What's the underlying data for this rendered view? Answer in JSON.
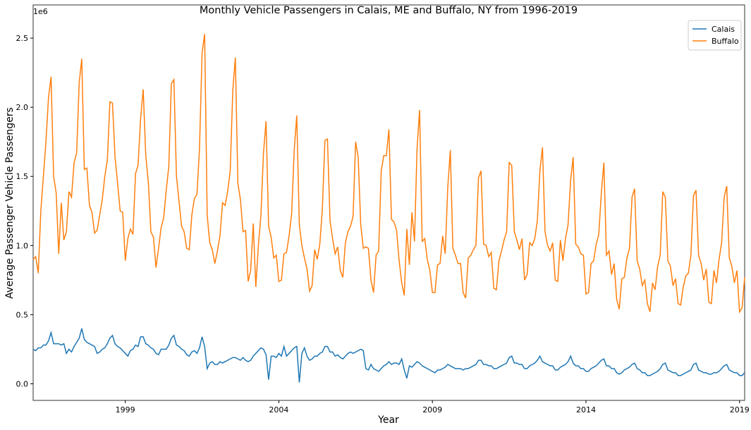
{
  "chart_data": {
    "type": "line",
    "title": "Monthly Vehicle Passengers in Calais, ME and Buffalo, NY from 1996-2019",
    "x_label": "Year",
    "y_label": "Average Passenger Vehicle Passengers",
    "y_offset_label": "1e6",
    "legend": "upper right",
    "grid": false,
    "xlim": [
      "1996-01",
      "2019-03"
    ],
    "xticks": [
      {
        "value": "1999-01",
        "label": "1999"
      },
      {
        "value": "2004-01",
        "label": "2004"
      },
      {
        "value": "2009-01",
        "label": "2009"
      },
      {
        "value": "2014-01",
        "label": "2014"
      },
      {
        "value": "2019-01",
        "label": "2019"
      }
    ],
    "ylim": [
      -0.12,
      2.74
    ],
    "yticks": [
      {
        "value": 0,
        "label": "0.0"
      },
      0.5,
      {
        "value": 1,
        "label": "1.0"
      },
      1.5,
      {
        "value": 2,
        "label": "2.0"
      },
      2.5
    ],
    "x": [
      "1996-01",
      "1996-02",
      "1996-03",
      "1996-04",
      "1996-05",
      "1996-06",
      "1996-07",
      "1996-08",
      "1996-09",
      "1996-10",
      "1996-11",
      "1996-12",
      "1997-01",
      "1997-02",
      "1997-03",
      "1997-04",
      "1997-05",
      "1997-06",
      "1997-07",
      "1997-08",
      "1997-09",
      "1997-10",
      "1997-11",
      "1997-12",
      "1998-01",
      "1998-02",
      "1998-03",
      "1998-04",
      "1998-05",
      "1998-06",
      "1998-07",
      "1998-08",
      "1998-09",
      "1998-10",
      "1998-11",
      "1998-12",
      "1999-01",
      "1999-02",
      "1999-03",
      "1999-04",
      "1999-05",
      "1999-06",
      "1999-07",
      "1999-08",
      "1999-09",
      "1999-10",
      "1999-11",
      "1999-12",
      "2000-01",
      "2000-02",
      "2000-03",
      "2000-04",
      "2000-05",
      "2000-06",
      "2000-07",
      "2000-08",
      "2000-09",
      "2000-10",
      "2000-11",
      "2000-12",
      "2001-01",
      "2001-02",
      "2001-03",
      "2001-04",
      "2001-05",
      "2001-06",
      "2001-07",
      "2001-08",
      "2001-09",
      "2001-10",
      "2001-11",
      "2001-12",
      "2002-01",
      "2002-02",
      "2002-03",
      "2002-04",
      "2002-05",
      "2002-06",
      "2002-07",
      "2002-08",
      "2002-09",
      "2002-10",
      "2002-11",
      "2002-12",
      "2003-01",
      "2003-02",
      "2003-03",
      "2003-04",
      "2003-05",
      "2003-06",
      "2003-07",
      "2003-08",
      "2003-09",
      "2003-10",
      "2003-11",
      "2003-12",
      "2004-01",
      "2004-02",
      "2004-03",
      "2004-04",
      "2004-05",
      "2004-06",
      "2004-07",
      "2004-08",
      "2004-09",
      "2004-10",
      "2004-11",
      "2004-12",
      "2005-01",
      "2005-02",
      "2005-03",
      "2005-04",
      "2005-05",
      "2005-06",
      "2005-07",
      "2005-08",
      "2005-09",
      "2005-10",
      "2005-11",
      "2005-12",
      "2006-01",
      "2006-02",
      "2006-03",
      "2006-04",
      "2006-05",
      "2006-06",
      "2006-07",
      "2006-08",
      "2006-09",
      "2006-10",
      "2006-11",
      "2006-12",
      "2007-01",
      "2007-02",
      "2007-03",
      "2007-04",
      "2007-05",
      "2007-06",
      "2007-07",
      "2007-08",
      "2007-09",
      "2007-10",
      "2007-11",
      "2007-12",
      "2008-01",
      "2008-02",
      "2008-03",
      "2008-04",
      "2008-05",
      "2008-06",
      "2008-07",
      "2008-08",
      "2008-09",
      "2008-10",
      "2008-11",
      "2008-12",
      "2009-01",
      "2009-02",
      "2009-03",
      "2009-04",
      "2009-05",
      "2009-06",
      "2009-07",
      "2009-08",
      "2009-09",
      "2009-10",
      "2009-11",
      "2009-12",
      "2010-01",
      "2010-02",
      "2010-03",
      "2010-04",
      "2010-05",
      "2010-06",
      "2010-07",
      "2010-08",
      "2010-09",
      "2010-10",
      "2010-11",
      "2010-12",
      "2011-01",
      "2011-02",
      "2011-03",
      "2011-04",
      "2011-05",
      "2011-06",
      "2011-07",
      "2011-08",
      "2011-09",
      "2011-10",
      "2011-11",
      "2011-12",
      "2012-01",
      "2012-02",
      "2012-03",
      "2012-04",
      "2012-05",
      "2012-06",
      "2012-07",
      "2012-08",
      "2012-09",
      "2012-10",
      "2012-11",
      "2012-12",
      "2013-01",
      "2013-02",
      "2013-03",
      "2013-04",
      "2013-05",
      "2013-06",
      "2013-07",
      "2013-08",
      "2013-09",
      "2013-10",
      "2013-11",
      "2013-12",
      "2014-01",
      "2014-02",
      "2014-03",
      "2014-04",
      "2014-05",
      "2014-06",
      "2014-07",
      "2014-08",
      "2014-09",
      "2014-10",
      "2014-11",
      "2014-12",
      "2015-01",
      "2015-02",
      "2015-03",
      "2015-04",
      "2015-05",
      "2015-06",
      "2015-07",
      "2015-08",
      "2015-09",
      "2015-10",
      "2015-11",
      "2015-12",
      "2016-01",
      "2016-02",
      "2016-03",
      "2016-04",
      "2016-05",
      "2016-06",
      "2016-07",
      "2016-08",
      "2016-09",
      "2016-10",
      "2016-11",
      "2016-12",
      "2017-01",
      "2017-02",
      "2017-03",
      "2017-04",
      "2017-05",
      "2017-06",
      "2017-07",
      "2017-08",
      "2017-09",
      "2017-10",
      "2017-11",
      "2017-12",
      "2018-01",
      "2018-02",
      "2018-03",
      "2018-04",
      "2018-05",
      "2018-06",
      "2018-07",
      "2018-08",
      "2018-09",
      "2018-10",
      "2018-11",
      "2018-12",
      "2019-01",
      "2019-02",
      "2019-03"
    ],
    "series": [
      {
        "name": "Calais",
        "color": "#1f77b4",
        "values": [
          0.25,
          0.24,
          0.26,
          0.26,
          0.28,
          0.28,
          0.31,
          0.37,
          0.29,
          0.29,
          0.29,
          0.28,
          0.29,
          0.22,
          0.25,
          0.23,
          0.27,
          0.3,
          0.33,
          0.4,
          0.32,
          0.3,
          0.29,
          0.28,
          0.27,
          0.22,
          0.23,
          0.25,
          0.26,
          0.29,
          0.33,
          0.35,
          0.29,
          0.27,
          0.26,
          0.24,
          0.22,
          0.2,
          0.24,
          0.25,
          0.28,
          0.27,
          0.34,
          0.34,
          0.29,
          0.28,
          0.26,
          0.25,
          0.22,
          0.21,
          0.25,
          0.25,
          0.25,
          0.28,
          0.33,
          0.35,
          0.28,
          0.27,
          0.25,
          0.24,
          0.21,
          0.2,
          0.23,
          0.24,
          0.22,
          0.26,
          0.34,
          0.27,
          0.11,
          0.15,
          0.16,
          0.14,
          0.14,
          0.16,
          0.15,
          0.16,
          0.17,
          0.18,
          0.19,
          0.19,
          0.18,
          0.17,
          0.19,
          0.17,
          0.16,
          0.17,
          0.2,
          0.22,
          0.24,
          0.26,
          0.25,
          0.21,
          0.03,
          0.2,
          0.2,
          0.19,
          0.22,
          0.2,
          0.27,
          0.2,
          0.22,
          0.24,
          0.26,
          0.27,
          0.01,
          0.22,
          0.26,
          0.2,
          0.17,
          0.18,
          0.2,
          0.2,
          0.22,
          0.23,
          0.27,
          0.27,
          0.23,
          0.23,
          0.2,
          0.21,
          0.19,
          0.18,
          0.2,
          0.22,
          0.23,
          0.22,
          0.23,
          0.24,
          0.25,
          0.24,
          0.11,
          0.1,
          0.14,
          0.11,
          0.1,
          0.09,
          0.11,
          0.13,
          0.14,
          0.16,
          0.14,
          0.15,
          0.15,
          0.14,
          0.18,
          0.1,
          0.04,
          0.13,
          0.12,
          0.14,
          0.16,
          0.15,
          0.13,
          0.12,
          0.11,
          0.1,
          0.09,
          0.08,
          0.1,
          0.1,
          0.11,
          0.12,
          0.14,
          0.13,
          0.12,
          0.11,
          0.11,
          0.11,
          0.1,
          0.11,
          0.11,
          0.12,
          0.13,
          0.14,
          0.17,
          0.17,
          0.14,
          0.14,
          0.13,
          0.13,
          0.11,
          0.11,
          0.12,
          0.13,
          0.14,
          0.15,
          0.19,
          0.2,
          0.15,
          0.15,
          0.14,
          0.14,
          0.11,
          0.11,
          0.13,
          0.14,
          0.15,
          0.17,
          0.2,
          0.16,
          0.15,
          0.14,
          0.13,
          0.13,
          0.1,
          0.1,
          0.12,
          0.13,
          0.14,
          0.16,
          0.2,
          0.15,
          0.13,
          0.13,
          0.11,
          0.11,
          0.09,
          0.09,
          0.11,
          0.12,
          0.13,
          0.15,
          0.17,
          0.18,
          0.13,
          0.13,
          0.11,
          0.11,
          0.08,
          0.07,
          0.08,
          0.1,
          0.11,
          0.12,
          0.14,
          0.15,
          0.11,
          0.1,
          0.08,
          0.08,
          0.06,
          0.06,
          0.07,
          0.08,
          0.09,
          0.11,
          0.14,
          0.15,
          0.1,
          0.09,
          0.08,
          0.08,
          0.06,
          0.06,
          0.07,
          0.08,
          0.09,
          0.1,
          0.14,
          0.15,
          0.1,
          0.09,
          0.08,
          0.08,
          0.07,
          0.07,
          0.08,
          0.08,
          0.09,
          0.11,
          0.13,
          0.14,
          0.1,
          0.09,
          0.08,
          0.08,
          0.06,
          0.06,
          0.08
        ]
      },
      {
        "name": "Buffalo",
        "color": "#ff7f0e",
        "values": [
          0.9,
          0.92,
          0.8,
          1.25,
          1.5,
          1.75,
          2.07,
          2.22,
          1.5,
          1.38,
          0.94,
          1.31,
          1.04,
          1.1,
          1.39,
          1.35,
          1.6,
          1.67,
          2.18,
          2.35,
          1.55,
          1.56,
          1.29,
          1.24,
          1.09,
          1.11,
          1.22,
          1.33,
          1.5,
          1.62,
          2.04,
          2.03,
          1.64,
          1.45,
          1.25,
          1.24,
          0.89,
          1.05,
          1.12,
          1.08,
          1.52,
          1.58,
          1.92,
          2.13,
          1.65,
          1.46,
          1.1,
          1.06,
          0.84,
          0.98,
          1.13,
          1.2,
          1.4,
          1.57,
          2.17,
          2.2,
          1.5,
          1.32,
          1.14,
          1.1,
          0.98,
          0.97,
          1.22,
          1.34,
          1.37,
          1.7,
          2.39,
          2.53,
          1.22,
          1.02,
          0.97,
          0.87,
          0.96,
          1.07,
          1.31,
          1.29,
          1.39,
          1.54,
          2.12,
          2.36,
          1.45,
          1.33,
          1.1,
          1.11,
          0.74,
          0.82,
          1.16,
          0.7,
          1.0,
          1.22,
          1.67,
          1.9,
          1.14,
          1.06,
          0.91,
          0.93,
          0.74,
          0.75,
          0.94,
          0.95,
          1.07,
          1.23,
          1.69,
          1.94,
          1.15,
          1.0,
          0.91,
          0.83,
          0.67,
          0.71,
          0.97,
          0.9,
          1.01,
          1.26,
          1.76,
          1.77,
          1.18,
          1.05,
          0.94,
          0.99,
          0.82,
          0.77,
          1.02,
          1.1,
          1.14,
          1.21,
          1.75,
          1.64,
          1.15,
          0.98,
          0.99,
          0.98,
          0.75,
          0.66,
          0.93,
          0.96,
          1.54,
          1.65,
          1.65,
          1.84,
          1.19,
          1.17,
          1.11,
          0.89,
          0.73,
          0.64,
          1.12,
          0.86,
          1.24,
          1.03,
          1.7,
          1.98,
          1.03,
          1.05,
          0.9,
          0.82,
          0.66,
          0.66,
          0.86,
          0.87,
          1.07,
          0.94,
          1.42,
          1.69,
          0.98,
          0.93,
          0.87,
          0.87,
          0.66,
          0.62,
          0.91,
          0.93,
          0.97,
          1.0,
          1.49,
          1.54,
          1.01,
          1.0,
          0.92,
          0.95,
          0.69,
          0.68,
          0.89,
          0.96,
          1.04,
          1.1,
          1.6,
          1.58,
          1.1,
          1.04,
          0.97,
          1.05,
          0.75,
          0.79,
          1.02,
          1.0,
          1.05,
          1.18,
          1.54,
          1.71,
          1.1,
          1.0,
          0.96,
          1.02,
          0.75,
          0.74,
          1.04,
          0.89,
          1.05,
          1.15,
          1.47,
          1.64,
          1.01,
          0.99,
          0.94,
          0.93,
          0.65,
          0.66,
          0.87,
          0.89,
          1.01,
          1.08,
          1.38,
          1.6,
          0.93,
          0.96,
          0.79,
          0.87,
          0.61,
          0.54,
          0.76,
          0.77,
          0.91,
          0.98,
          1.35,
          1.41,
          0.89,
          0.83,
          0.71,
          0.75,
          0.58,
          0.52,
          0.73,
          0.68,
          0.85,
          0.93,
          1.39,
          1.35,
          0.89,
          0.85,
          0.71,
          0.76,
          0.58,
          0.57,
          0.7,
          0.78,
          0.8,
          0.93,
          1.36,
          1.4,
          0.93,
          0.87,
          0.75,
          0.83,
          0.59,
          0.58,
          0.82,
          0.73,
          0.9,
          1.02,
          1.35,
          1.43,
          0.91,
          0.85,
          0.73,
          0.82,
          0.52,
          0.55,
          0.77
        ]
      }
    ]
  }
}
